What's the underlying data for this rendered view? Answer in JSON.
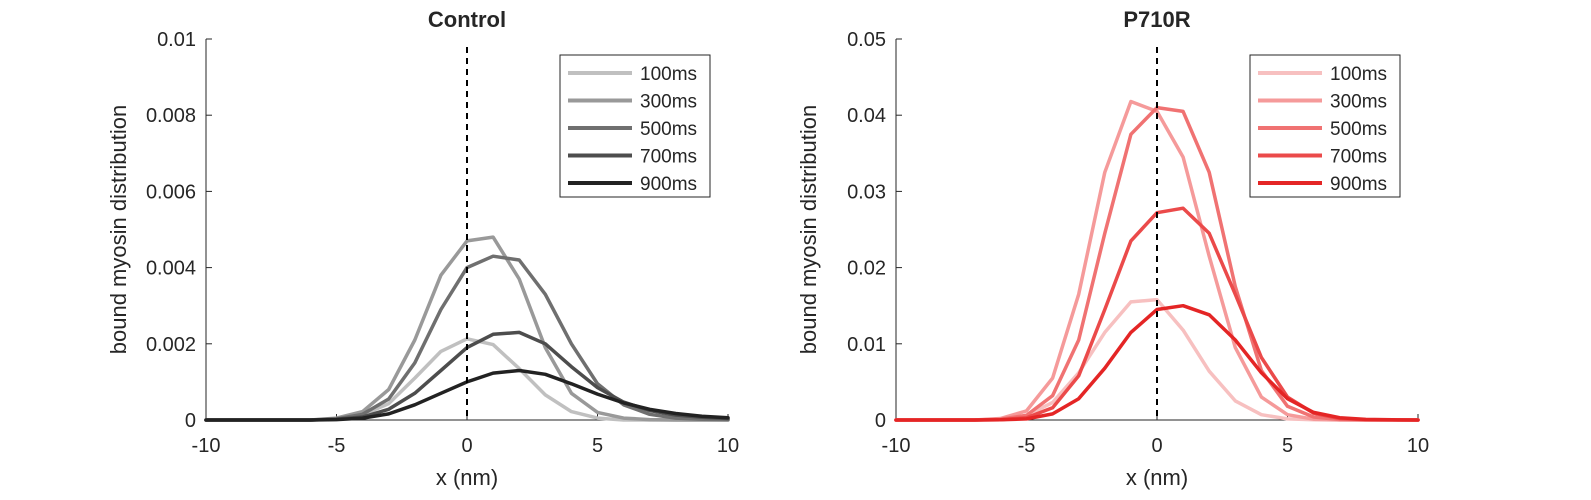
{
  "chart_data": [
    {
      "type": "line",
      "title": "Control",
      "xlabel": "x (nm)",
      "ylabel": "bound myosin distribution",
      "xlim": [
        -10,
        10
      ],
      "ylim": [
        0,
        0.01
      ],
      "xticks": [
        -10,
        -5,
        0,
        5,
        10
      ],
      "xtick_labels": [
        "-10",
        "-5",
        "0",
        "5",
        "10"
      ],
      "yticks": [
        0,
        0.002,
        0.004,
        0.006,
        0.008,
        0.01
      ],
      "ytick_labels": [
        "0",
        "0.002",
        "0.004",
        "0.006",
        "0.008",
        "0.01"
      ],
      "grid": false,
      "legend_position": "top-right",
      "reference_line": {
        "x": 0,
        "style": "dashed"
      },
      "x": [
        -10,
        -9,
        -8,
        -7,
        -6,
        -5,
        -4,
        -3,
        -2,
        -1,
        0,
        1,
        2,
        3,
        4,
        5,
        6,
        7,
        8,
        9,
        10
      ],
      "series": [
        {
          "name": "100ms",
          "color": "#c0c0c0",
          "values": [
            0,
            0,
            0,
            0,
            0,
            3e-05,
            0.00013,
            0.00043,
            0.0011,
            0.0018,
            0.00213,
            0.00198,
            0.00135,
            0.00066,
            0.00022,
            5e-05,
            0,
            0,
            0,
            0,
            0
          ]
        },
        {
          "name": "300ms",
          "color": "#999999",
          "values": [
            0,
            0,
            0,
            0,
            0,
            5e-05,
            0.00022,
            0.0008,
            0.0021,
            0.0038,
            0.0047,
            0.0048,
            0.0037,
            0.0019,
            0.0007,
            0.0002,
            5e-05,
            1e-05,
            0,
            0,
            0
          ]
        },
        {
          "name": "500ms",
          "color": "#6f6f6f",
          "values": [
            0,
            0,
            0,
            0,
            0,
            3e-05,
            0.00015,
            0.00055,
            0.0015,
            0.0029,
            0.004,
            0.0043,
            0.0042,
            0.0033,
            0.002,
            0.00095,
            0.0004,
            0.00015,
            5e-05,
            2e-05,
            1e-05
          ]
        },
        {
          "name": "700ms",
          "color": "#4d4d4d",
          "values": [
            0,
            0,
            0,
            0,
            0,
            2e-05,
            8e-05,
            0.00028,
            0.0007,
            0.0013,
            0.0019,
            0.00225,
            0.0023,
            0.002,
            0.0014,
            0.00085,
            0.00047,
            0.00025,
            0.00013,
            7e-05,
            4e-05
          ]
        },
        {
          "name": "900ms",
          "color": "#222222",
          "values": [
            0,
            0,
            0,
            0,
            0,
            1e-05,
            5e-05,
            0.00016,
            0.0004,
            0.0007,
            0.001,
            0.00123,
            0.0013,
            0.0012,
            0.00095,
            0.00068,
            0.00045,
            0.00028,
            0.00017,
            0.0001,
            6e-05
          ]
        }
      ]
    },
    {
      "type": "line",
      "title": "P710R",
      "xlabel": "x (nm)",
      "ylabel": "bound myosin distribution",
      "xlim": [
        -10,
        10
      ],
      "ylim": [
        0,
        0.05
      ],
      "xticks": [
        -10,
        -5,
        0,
        5,
        10
      ],
      "xtick_labels": [
        "-10",
        "-5",
        "0",
        "5",
        "10"
      ],
      "yticks": [
        0,
        0.01,
        0.02,
        0.03,
        0.04,
        0.05
      ],
      "ytick_labels": [
        "0",
        "0.01",
        "0.02",
        "0.03",
        "0.04",
        "0.05"
      ],
      "grid": false,
      "legend_position": "top-right",
      "reference_line": {
        "x": 0,
        "style": "dashed"
      },
      "x": [
        -10,
        -9,
        -8,
        -7,
        -6,
        -5,
        -4,
        -3,
        -2,
        -1,
        0,
        1,
        2,
        3,
        4,
        5,
        6,
        7,
        8,
        9,
        10
      ],
      "series": [
        {
          "name": "100ms",
          "color": "#f7c0c0",
          "values": [
            0,
            0,
            0,
            0,
            0.0001,
            0.0006,
            0.0023,
            0.0062,
            0.0115,
            0.0155,
            0.0158,
            0.0118,
            0.0064,
            0.0025,
            0.0007,
            0.00015,
            2e-05,
            0,
            0,
            0,
            0
          ]
        },
        {
          "name": "300ms",
          "color": "#f59a9a",
          "values": [
            0,
            0,
            0,
            0,
            0.0002,
            0.0012,
            0.0055,
            0.0165,
            0.0325,
            0.0418,
            0.0405,
            0.0345,
            0.0215,
            0.0095,
            0.003,
            0.0007,
            0.0001,
            1e-05,
            0,
            0,
            0
          ]
        },
        {
          "name": "500ms",
          "color": "#f07272",
          "values": [
            0,
            0,
            0,
            0,
            0.0001,
            0.0006,
            0.0032,
            0.0105,
            0.0245,
            0.0375,
            0.041,
            0.0405,
            0.0325,
            0.0175,
            0.0065,
            0.0018,
            0.0004,
            7e-05,
            1e-05,
            0,
            0
          ]
        },
        {
          "name": "700ms",
          "color": "#eb4a4a",
          "values": [
            0,
            0,
            0,
            0,
            4e-05,
            0.0003,
            0.0016,
            0.0058,
            0.0145,
            0.0235,
            0.0272,
            0.0278,
            0.0245,
            0.0165,
            0.0082,
            0.003,
            0.0009,
            0.0002,
            4e-05,
            1e-05,
            0
          ]
        },
        {
          "name": "900ms",
          "color": "#e42525",
          "values": [
            0,
            0,
            0,
            0,
            2e-05,
            0.00015,
            0.0008,
            0.0028,
            0.0068,
            0.0115,
            0.0145,
            0.015,
            0.0138,
            0.0105,
            0.0062,
            0.0028,
            0.001,
            0.0003,
            8e-05,
            2e-05,
            0
          ]
        }
      ]
    }
  ]
}
